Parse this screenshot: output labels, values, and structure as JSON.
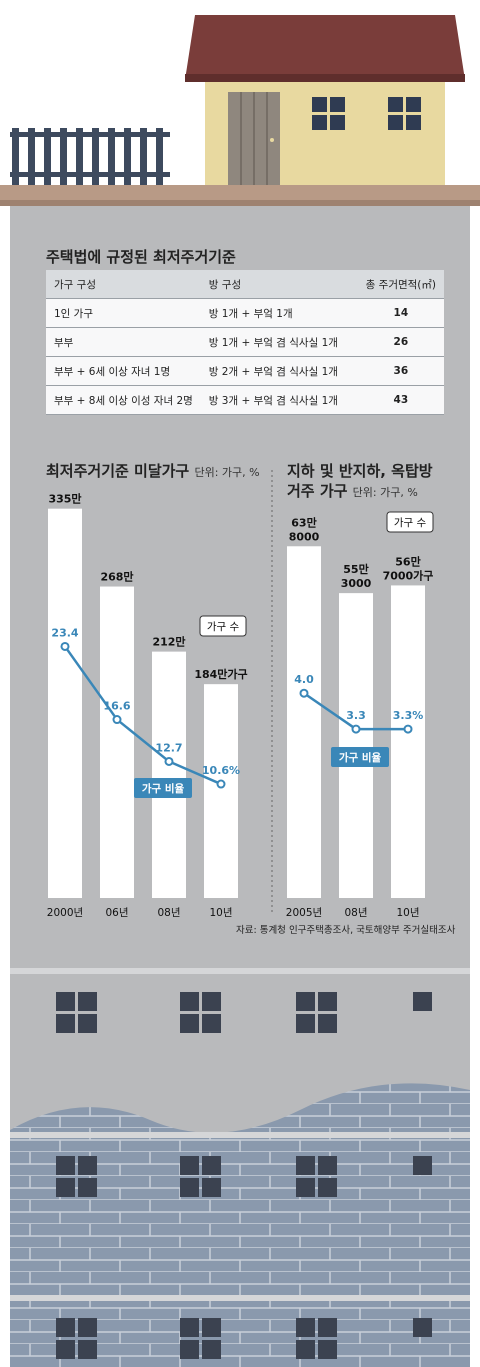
{
  "table": {
    "title": "주택법에 규정된 최저주거기준",
    "headers": [
      "가구 구성",
      "방 구성",
      "총 주거면적(㎡)"
    ],
    "rows": [
      [
        "1인 가구",
        "방 1개 + 부엌 1개",
        "14"
      ],
      [
        "부부",
        "방 1개 + 부엌 겸 식사실 1개",
        "26"
      ],
      [
        "부부 + 6세 이상 자녀 1명",
        "방 2개 + 부엌 겸 식사실 1개",
        "36"
      ],
      [
        "부부 + 8세 이상 이성 자녀 2명",
        "방 3개 + 부엌 겸 식사실 1개",
        "43"
      ]
    ]
  },
  "chart_data": [
    {
      "type": "bar",
      "title": "최저주거기준 미달가구",
      "unit_label": "단위: 가구, %",
      "categories": [
        "2000년",
        "06년",
        "08년",
        "10년"
      ],
      "values": [
        3350000,
        2680000,
        2120000,
        1840000
      ],
      "bar_labels": [
        "335만",
        "268만",
        "212만",
        "184만가구"
      ],
      "ylim": [
        0,
        3700000
      ],
      "legend_bar": "가구 수",
      "line": {
        "name": "가구 비율",
        "values": [
          23.4,
          16.6,
          12.7,
          10.6
        ],
        "labels": [
          "23.4",
          "16.6",
          "12.7",
          "10.6%"
        ],
        "ylim": [
          0,
          40
        ]
      }
    },
    {
      "type": "bar",
      "title_line1": "지하 및 반지하, 옥탑방",
      "title_line2": "거주 가구",
      "unit_label": "단위: 가구, %",
      "categories": [
        "2005년",
        "08년",
        "10년"
      ],
      "values": [
        638000,
        553000,
        567000
      ],
      "bar_labels": [
        [
          "63만",
          "8000"
        ],
        [
          "55만",
          "3000"
        ],
        [
          "56만",
          "7000가구"
        ]
      ],
      "ylim": [
        0,
        780000
      ],
      "legend_bar": "가구 수",
      "line": {
        "name": "가구 비율",
        "values": [
          4.0,
          3.3,
          3.3
        ],
        "labels": [
          "4.0",
          "3.3",
          "3.3%"
        ],
        "ylim": [
          0,
          8.4
        ]
      }
    }
  ],
  "source": "자료: 통계청 인구주택총조사, 국토해양부 주거실태조사",
  "colors": {
    "line": "#3a87b8",
    "bar": "#ffffff",
    "wall": "#b8b9bb",
    "roof": "#7a3d3a",
    "house": "#e8d9a0"
  }
}
